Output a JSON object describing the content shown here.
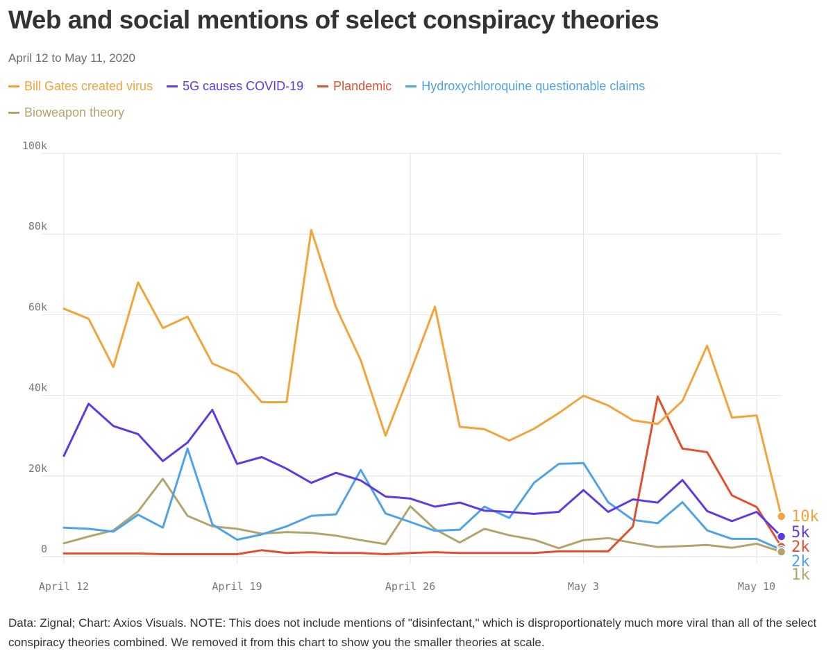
{
  "chart_data": {
    "type": "line",
    "title": "Web and social mentions of select conspiracy theories",
    "subtitle": "April 12 to May 11, 2020",
    "x_start_day": 0,
    "x_tick_labels": [
      {
        "label": "April 12",
        "day": 0
      },
      {
        "label": "April 19",
        "day": 7
      },
      {
        "label": "April 26",
        "day": 14
      },
      {
        "label": "May 3",
        "day": 21
      },
      {
        "label": "May 10",
        "day": 28
      }
    ],
    "y_tick_labels": [
      "0",
      "20k",
      "40k",
      "60k",
      "80k",
      "100k"
    ],
    "ylim": [
      0,
      100000
    ],
    "xlim": [
      0,
      29
    ],
    "grid": true,
    "series": [
      {
        "name": "Bill Gates created virus",
        "color": "#f2a33b",
        "end_label": "10k",
        "values": [
          61500,
          59000,
          47000,
          68000,
          56700,
          59500,
          47900,
          45300,
          38300,
          38300,
          81000,
          61800,
          48700,
          30000,
          45700,
          62000,
          32200,
          31600,
          28800,
          31700,
          35600,
          39900,
          37500,
          33800,
          32900,
          38600,
          52300,
          34500,
          35000,
          10000
        ]
      },
      {
        "name": "5G causes COVID-19",
        "color": "#5c3be0",
        "end_label": "5k",
        "values": [
          25000,
          37900,
          32400,
          30400,
          23700,
          28300,
          36400,
          23000,
          24700,
          21800,
          18300,
          20800,
          18900,
          14900,
          14400,
          12400,
          13400,
          11400,
          11100,
          10600,
          11100,
          16500,
          11100,
          14200,
          13400,
          19000,
          11300,
          8800,
          11100,
          5000
        ]
      },
      {
        "name": "Plandemic",
        "color": "#e0502d",
        "end_label": "2k",
        "values": [
          800,
          800,
          800,
          800,
          600,
          600,
          600,
          600,
          1600,
          900,
          1100,
          900,
          900,
          600,
          900,
          1100,
          900,
          900,
          900,
          900,
          1300,
          1300,
          1300,
          7500,
          39700,
          26800,
          25900,
          15200,
          12300,
          2500
        ]
      },
      {
        "name": "Hydroxychloroquine questionable claims",
        "color": "#4ea2e8",
        "end_label": "2k",
        "values": [
          7200,
          6900,
          6200,
          10400,
          7200,
          26800,
          8000,
          4200,
          5500,
          7500,
          10100,
          10500,
          21500,
          10700,
          8600,
          6400,
          6700,
          12400,
          9600,
          18300,
          23000,
          23200,
          13500,
          9100,
          8300,
          13500,
          6500,
          4400,
          4400,
          1700
        ]
      },
      {
        "name": "Bioweapon theory",
        "color": "#b3a46d",
        "end_label": "1k",
        "values": [
          3300,
          5000,
          6500,
          11200,
          19300,
          10100,
          7500,
          6900,
          5700,
          6100,
          5900,
          5200,
          4100,
          3100,
          12500,
          6800,
          3500,
          6900,
          5300,
          4200,
          2100,
          4100,
          4600,
          3400,
          2400,
          2600,
          2900,
          2200,
          3200,
          1200
        ]
      }
    ]
  },
  "footnote": "Data: Zignal; Chart: Axios Visuals. NOTE: This does not include mentions of \"disinfectant,\" which is disproportionately much more viral than all of the select conspiracy theories combined. We removed it from this chart to show you the smaller theories at scale."
}
